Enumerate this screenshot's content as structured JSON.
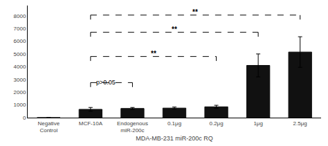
{
  "chart_data": {
    "type": "bar",
    "xlabel": "MDA-MB-231 miR-200c RQ",
    "categories": [
      "Negative\nControl",
      "MCF-10A",
      "Endogenous\nmiR-200c",
      "0.1μg",
      "0.2μg",
      "1μg",
      "2.5μg"
    ],
    "values": [
      0,
      650,
      720,
      750,
      850,
      4100,
      5150
    ],
    "errors": [
      0,
      150,
      80,
      80,
      120,
      900,
      1200
    ],
    "color": "#111111",
    "ylim": [
      0,
      8800
    ],
    "yticks": [
      0,
      1000,
      2000,
      3000,
      4000,
      5000,
      6000,
      7000,
      8000
    ],
    "grid": false,
    "brackets": [
      {
        "from": "MCF-10A",
        "to": "Endogenous\nmiR-200c",
        "y": 2750,
        "drop": 350,
        "label": "p>0.05"
      },
      {
        "from": "MCF-10A",
        "to": "0.2μg",
        "y": 4800,
        "drop": 350,
        "label": "**"
      },
      {
        "from": "MCF-10A",
        "to": "1μg",
        "y": 6700,
        "drop": 350,
        "label": "**"
      },
      {
        "from": "MCF-10A",
        "to": "2.5μg",
        "y": 8050,
        "drop": 350,
        "label": "**"
      }
    ]
  }
}
